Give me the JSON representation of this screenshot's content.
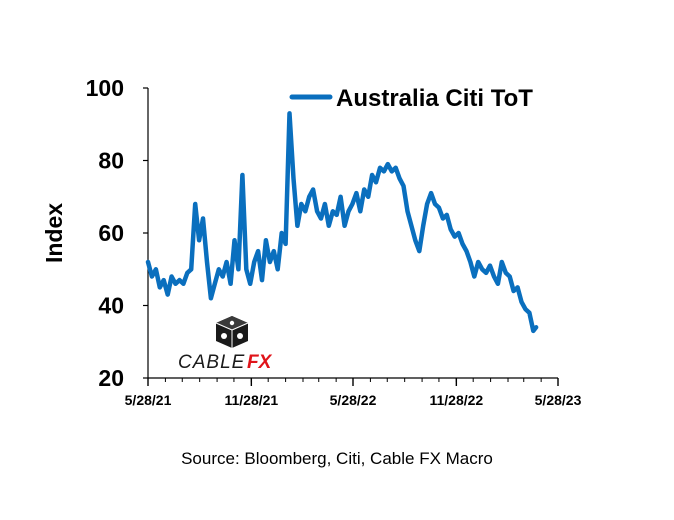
{
  "source_note": "Source: Bloomberg, Citi, Cable FX Macro",
  "watermark": {
    "text_cable": "CABLE",
    "text_fx": "FX",
    "icon": "dice-currency-icon",
    "fx_color": "#e0141a"
  },
  "colors": {
    "series": "#0a6fbe",
    "axis": "#000000",
    "background": "#ffffff"
  },
  "chart_data": {
    "type": "line",
    "title": "",
    "xlabel": "",
    "ylabel": "Index",
    "ylim": [
      20,
      100
    ],
    "yticks": [
      "20",
      "40",
      "60",
      "80",
      "100"
    ],
    "xticks": [
      "5/28/21",
      "11/28/21",
      "5/28/22",
      "11/28/22",
      "5/28/23"
    ],
    "grid": false,
    "legend": "top-right",
    "series": [
      {
        "name": "Australia Citi ToT",
        "color": "#0a6fbe",
        "points": [
          [
            "2021-05-28",
            52
          ],
          [
            "2021-06-04",
            48
          ],
          [
            "2021-06-11",
            50
          ],
          [
            "2021-06-18",
            45
          ],
          [
            "2021-06-25",
            47
          ],
          [
            "2021-07-02",
            43
          ],
          [
            "2021-07-09",
            48
          ],
          [
            "2021-07-16",
            46
          ],
          [
            "2021-07-23",
            47
          ],
          [
            "2021-07-30",
            46
          ],
          [
            "2021-08-06",
            49
          ],
          [
            "2021-08-13",
            50
          ],
          [
            "2021-08-20",
            68
          ],
          [
            "2021-08-27",
            58
          ],
          [
            "2021-09-03",
            64
          ],
          [
            "2021-09-10",
            52
          ],
          [
            "2021-09-17",
            42
          ],
          [
            "2021-09-24",
            46
          ],
          [
            "2021-10-01",
            50
          ],
          [
            "2021-10-08",
            48
          ],
          [
            "2021-10-15",
            52
          ],
          [
            "2021-10-22",
            46
          ],
          [
            "2021-10-29",
            58
          ],
          [
            "2021-11-05",
            50
          ],
          [
            "2021-11-12",
            76
          ],
          [
            "2021-11-19",
            50
          ],
          [
            "2021-11-26",
            46
          ],
          [
            "2021-12-03",
            52
          ],
          [
            "2021-12-10",
            55
          ],
          [
            "2021-12-17",
            47
          ],
          [
            "2021-12-24",
            58
          ],
          [
            "2021-12-31",
            52
          ],
          [
            "2022-01-07",
            55
          ],
          [
            "2022-01-14",
            50
          ],
          [
            "2022-01-21",
            60
          ],
          [
            "2022-01-28",
            57
          ],
          [
            "2022-02-04",
            93
          ],
          [
            "2022-02-11",
            75
          ],
          [
            "2022-02-18",
            62
          ],
          [
            "2022-02-25",
            68
          ],
          [
            "2022-03-04",
            66
          ],
          [
            "2022-03-11",
            70
          ],
          [
            "2022-03-18",
            72
          ],
          [
            "2022-03-25",
            66
          ],
          [
            "2022-04-01",
            64
          ],
          [
            "2022-04-08",
            68
          ],
          [
            "2022-04-15",
            62
          ],
          [
            "2022-04-22",
            66
          ],
          [
            "2022-04-29",
            65
          ],
          [
            "2022-05-06",
            70
          ],
          [
            "2022-05-13",
            62
          ],
          [
            "2022-05-20",
            66
          ],
          [
            "2022-05-27",
            68
          ],
          [
            "2022-06-03",
            71
          ],
          [
            "2022-06-10",
            66
          ],
          [
            "2022-06-17",
            72
          ],
          [
            "2022-06-24",
            70
          ],
          [
            "2022-07-01",
            76
          ],
          [
            "2022-07-08",
            74
          ],
          [
            "2022-07-15",
            78
          ],
          [
            "2022-07-22",
            77
          ],
          [
            "2022-07-29",
            79
          ],
          [
            "2022-08-05",
            77
          ],
          [
            "2022-08-12",
            78
          ],
          [
            "2022-08-19",
            75
          ],
          [
            "2022-08-26",
            73
          ],
          [
            "2022-09-02",
            66
          ],
          [
            "2022-09-09",
            62
          ],
          [
            "2022-09-16",
            58
          ],
          [
            "2022-09-23",
            55
          ],
          [
            "2022-09-30",
            62
          ],
          [
            "2022-10-07",
            68
          ],
          [
            "2022-10-14",
            71
          ],
          [
            "2022-10-21",
            68
          ],
          [
            "2022-10-28",
            67
          ],
          [
            "2022-11-04",
            64
          ],
          [
            "2022-11-11",
            65
          ],
          [
            "2022-11-18",
            61
          ],
          [
            "2022-11-25",
            59
          ],
          [
            "2022-12-02",
            60
          ],
          [
            "2022-12-09",
            57
          ],
          [
            "2022-12-16",
            55
          ],
          [
            "2022-12-23",
            52
          ],
          [
            "2022-12-30",
            48
          ],
          [
            "2023-01-06",
            52
          ],
          [
            "2023-01-13",
            50
          ],
          [
            "2023-01-20",
            49
          ],
          [
            "2023-01-27",
            51
          ],
          [
            "2023-02-03",
            48
          ],
          [
            "2023-02-10",
            46
          ],
          [
            "2023-02-17",
            52
          ],
          [
            "2023-02-24",
            49
          ],
          [
            "2023-03-03",
            48
          ],
          [
            "2023-03-10",
            44
          ],
          [
            "2023-03-17",
            45
          ],
          [
            "2023-03-24",
            41
          ],
          [
            "2023-03-31",
            39
          ],
          [
            "2023-04-07",
            38
          ],
          [
            "2023-04-14",
            33
          ],
          [
            "2023-04-19",
            34
          ]
        ]
      }
    ]
  }
}
